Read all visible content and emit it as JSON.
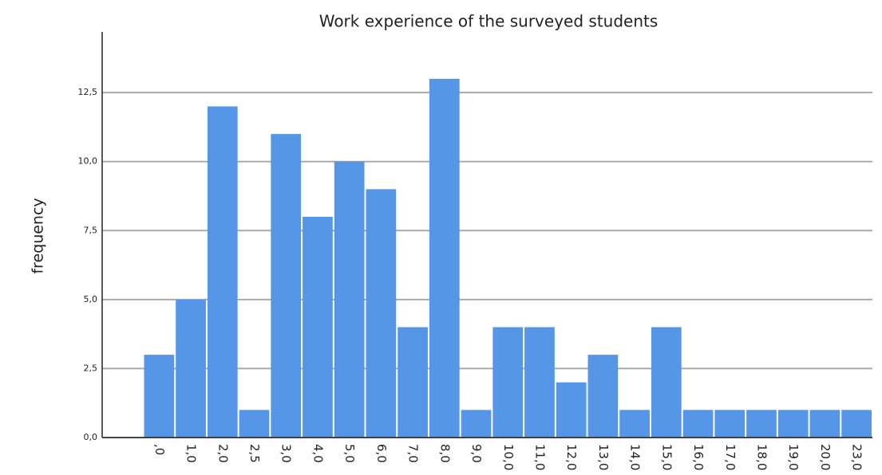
{
  "chart_data": {
    "type": "bar",
    "title": "Work experience of the surveyed students",
    "ylabel": "frequency",
    "categories": [
      ",0",
      "1,0",
      "2,0",
      "2,5",
      "3,0",
      "4,0",
      "5,0",
      "6,0",
      "7,0",
      "8,0",
      "9,0",
      "10,0",
      "11,0",
      "12,0",
      "13,0",
      "14,0",
      "15,0",
      "16,0",
      "17,0",
      "18,0",
      "19,0",
      "20,0",
      "23,0"
    ],
    "values": [
      3,
      5,
      12,
      1,
      11,
      8,
      10,
      9,
      4,
      13,
      1,
      4,
      4,
      2,
      3,
      1,
      4,
      1,
      1,
      1,
      1,
      1,
      1
    ],
    "color": "#5596e6",
    "ylim": [
      0,
      14.7
    ],
    "yticks": [
      {
        "value": 0,
        "label": "0,0"
      },
      {
        "value": 2.5,
        "label": "2,5"
      },
      {
        "value": 5,
        "label": "5,0"
      },
      {
        "value": 7.5,
        "label": "7,5"
      },
      {
        "value": 10,
        "label": "10,0"
      },
      {
        "value": 12.5,
        "label": "12,5"
      }
    ],
    "grid": true
  }
}
